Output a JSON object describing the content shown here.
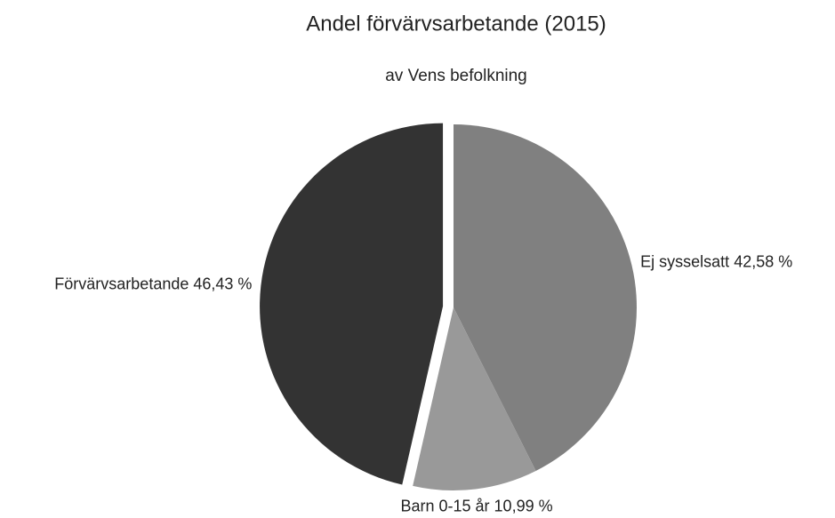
{
  "chart_data": {
    "type": "pie",
    "title": "Andel förvärvsarbetande (2015)",
    "subtitle": "av Vens befolkning",
    "categories": [
      "Ej sysselsatt",
      "Barn 0-15 år",
      "Förvärvsarbetande"
    ],
    "values": [
      42.58,
      10.99,
      46.43
    ],
    "value_labels": [
      "42,58 %",
      "10,99 %",
      "46,43 %"
    ],
    "colors": [
      "#808080",
      "#999999",
      "#333333"
    ]
  }
}
